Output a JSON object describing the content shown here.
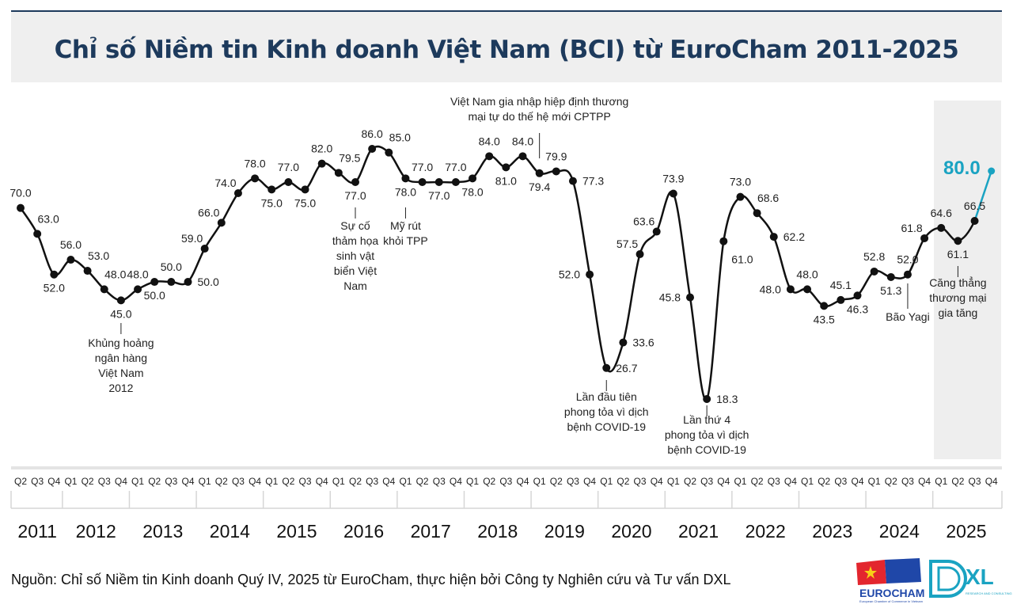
{
  "title": "Chỉ số Niềm tin Kinh doanh Việt Nam (BCI) từ EuroCham 2011-2025",
  "source": "Nguồn: Chỉ số Niềm tin Kinh doanh Quý IV, 2025 từ EuroCham, thực hiện bởi Công ty Nghiên cứu và Tư vấn DXL",
  "colors": {
    "title": "#1d3a5c",
    "line": "#111111",
    "highlight": "#1aa3c2",
    "shade": "#eeeeee"
  },
  "logos": {
    "eurocham": "EUROCHAM",
    "eurocham_sub": "European Chamber of Commerce in Vietnam",
    "dxl": "XL",
    "dxl_sub": "RESEARCH AND CONSULTING"
  },
  "chart_data": {
    "type": "line",
    "title": "Chỉ số Niềm tin Kinh doanh Việt Nam (BCI) từ EuroCham 2011-2025",
    "years": [
      "2011",
      "2012",
      "2013",
      "2014",
      "2015",
      "2016",
      "2017",
      "2018",
      "2019",
      "2020",
      "2021",
      "2022",
      "2023",
      "2024",
      "2025"
    ],
    "quarters": [
      "Q2",
      "Q3",
      "Q4",
      "Q1",
      "Q2",
      "Q3",
      "Q4",
      "Q1",
      "Q2",
      "Q3",
      "Q4",
      "Q1",
      "Q2",
      "Q3",
      "Q4",
      "Q1",
      "Q2",
      "Q3",
      "Q4",
      "Q1",
      "Q2",
      "Q3",
      "Q4",
      "Q1",
      "Q2",
      "Q3",
      "Q4",
      "Q1",
      "Q2",
      "Q3",
      "Q4",
      "Q1",
      "Q2",
      "Q3",
      "Q4",
      "Q1",
      "Q2",
      "Q3",
      "Q4",
      "Q1",
      "Q2",
      "Q3",
      "Q4",
      "Q1",
      "Q2",
      "Q3",
      "Q4",
      "Q1",
      "Q2",
      "Q3",
      "Q4",
      "Q1",
      "Q2",
      "Q3",
      "Q4",
      "Q1",
      "Q2",
      "Q3",
      "Q4"
    ],
    "values": [
      70.0,
      63.0,
      52.0,
      56.0,
      53.0,
      48.0,
      45.0,
      48.0,
      50.0,
      50.0,
      50.0,
      59.0,
      66.0,
      74.0,
      78.0,
      75.0,
      77.0,
      75.0,
      82.0,
      79.5,
      77.0,
      86.0,
      85.0,
      78.0,
      77.0,
      77.0,
      77.0,
      78.0,
      84.0,
      81.0,
      84.0,
      79.4,
      79.9,
      77.3,
      52.0,
      26.7,
      33.6,
      57.5,
      63.6,
      73.9,
      45.8,
      18.3,
      61.0,
      73.0,
      68.6,
      62.2,
      48.0,
      48.0,
      43.5,
      45.1,
      46.3,
      52.8,
      51.3,
      52.0,
      61.8,
      64.6,
      61.1,
      66.5,
      80.0
    ],
    "highlight_last": true,
    "annotations": [
      {
        "index": 6,
        "lines": [
          "Khủng hoảng",
          "ngân hàng",
          "Việt Nam",
          "2012"
        ]
      },
      {
        "index": 20,
        "lines": [
          "Sự cố",
          "thảm họa",
          "sinh vật",
          "biển Việt",
          "Nam"
        ]
      },
      {
        "index": 23,
        "lines": [
          "Mỹ rút",
          "khỏi TPP"
        ]
      },
      {
        "index": 31,
        "lines": [
          "Việt Nam gia nhập hiệp định thương",
          "mại tự do thế hệ mới CPTPP"
        ]
      },
      {
        "index": 35,
        "lines": [
          "Lần đầu tiên",
          "phong tỏa vì dịch",
          "bệnh COVID-19"
        ]
      },
      {
        "index": 41,
        "lines": [
          "Lần thứ 4",
          "phong tỏa vì dịch",
          "bệnh COVID-19"
        ]
      },
      {
        "index": 53,
        "lines": [
          "Bão Yagi"
        ]
      },
      {
        "index": 56,
        "lines": [
          "Căng thẳng",
          "thương mại",
          "gia tăng"
        ]
      }
    ]
  }
}
